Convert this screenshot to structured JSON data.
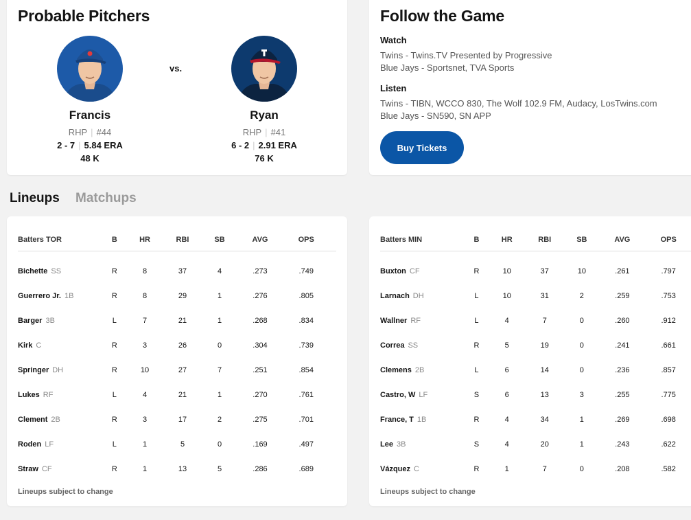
{
  "pitchers": {
    "title": "Probable Pitchers",
    "vs": "vs.",
    "away": {
      "name": "Francis",
      "throws": "RHP",
      "number": "#44",
      "record": "2 - 7",
      "era": "5.84 ERA",
      "strikeouts": "48 K",
      "cap_color": "#1d4f91",
      "jersey_color": "#1a4c8c"
    },
    "home": {
      "name": "Ryan",
      "throws": "RHP",
      "number": "#41",
      "record": "6 - 2",
      "era": "2.91 ERA",
      "strikeouts": "76 K",
      "cap_color": "#0c2340",
      "jersey_color": "#0c2340"
    }
  },
  "follow": {
    "title": "Follow the Game",
    "watch_label": "Watch",
    "watch": [
      "Twins - Twins.TV Presented by Progressive",
      "Blue Jays - Sportsnet, TVA Sports"
    ],
    "listen_label": "Listen",
    "listen": [
      "Twins - TIBN, WCCO 830, The Wolf 102.9 FM, Audacy, LosTwins.com",
      "Blue Jays - SN590, SN APP"
    ],
    "buy_tickets": "Buy Tickets"
  },
  "tabs": {
    "lineups": "Lineups",
    "matchups": "Matchups"
  },
  "columns": [
    "B",
    "HR",
    "RBI",
    "SB",
    "AVG",
    "OPS"
  ],
  "lineups": [
    {
      "header": "Batters TOR",
      "note": "Lineups subject to change",
      "rows": [
        {
          "name": "Bichette",
          "pos": "SS",
          "b": "R",
          "hr": "8",
          "rbi": "37",
          "sb": "4",
          "avg": ".273",
          "ops": ".749"
        },
        {
          "name": "Guerrero Jr.",
          "pos": "1B",
          "b": "R",
          "hr": "8",
          "rbi": "29",
          "sb": "1",
          "avg": ".276",
          "ops": ".805"
        },
        {
          "name": "Barger",
          "pos": "3B",
          "b": "L",
          "hr": "7",
          "rbi": "21",
          "sb": "1",
          "avg": ".268",
          "ops": ".834"
        },
        {
          "name": "Kirk",
          "pos": "C",
          "b": "R",
          "hr": "3",
          "rbi": "26",
          "sb": "0",
          "avg": ".304",
          "ops": ".739"
        },
        {
          "name": "Springer",
          "pos": "DH",
          "b": "R",
          "hr": "10",
          "rbi": "27",
          "sb": "7",
          "avg": ".251",
          "ops": ".854"
        },
        {
          "name": "Lukes",
          "pos": "RF",
          "b": "L",
          "hr": "4",
          "rbi": "21",
          "sb": "1",
          "avg": ".270",
          "ops": ".761"
        },
        {
          "name": "Clement",
          "pos": "2B",
          "b": "R",
          "hr": "3",
          "rbi": "17",
          "sb": "2",
          "avg": ".275",
          "ops": ".701"
        },
        {
          "name": "Roden",
          "pos": "LF",
          "b": "L",
          "hr": "1",
          "rbi": "5",
          "sb": "0",
          "avg": ".169",
          "ops": ".497"
        },
        {
          "name": "Straw",
          "pos": "CF",
          "b": "R",
          "hr": "1",
          "rbi": "13",
          "sb": "5",
          "avg": ".286",
          "ops": ".689"
        }
      ]
    },
    {
      "header": "Batters MIN",
      "note": "Lineups subject to change",
      "rows": [
        {
          "name": "Buxton",
          "pos": "CF",
          "b": "R",
          "hr": "10",
          "rbi": "37",
          "sb": "10",
          "avg": ".261",
          "ops": ".797"
        },
        {
          "name": "Larnach",
          "pos": "DH",
          "b": "L",
          "hr": "10",
          "rbi": "31",
          "sb": "2",
          "avg": ".259",
          "ops": ".753"
        },
        {
          "name": "Wallner",
          "pos": "RF",
          "b": "L",
          "hr": "4",
          "rbi": "7",
          "sb": "0",
          "avg": ".260",
          "ops": ".912"
        },
        {
          "name": "Correa",
          "pos": "SS",
          "b": "R",
          "hr": "5",
          "rbi": "19",
          "sb": "0",
          "avg": ".241",
          "ops": ".661"
        },
        {
          "name": "Clemens",
          "pos": "2B",
          "b": "L",
          "hr": "6",
          "rbi": "14",
          "sb": "0",
          "avg": ".236",
          "ops": ".857"
        },
        {
          "name": "Castro, W",
          "pos": "LF",
          "b": "S",
          "hr": "6",
          "rbi": "13",
          "sb": "3",
          "avg": ".255",
          "ops": ".775"
        },
        {
          "name": "France, T",
          "pos": "1B",
          "b": "R",
          "hr": "4",
          "rbi": "34",
          "sb": "1",
          "avg": ".269",
          "ops": ".698"
        },
        {
          "name": "Lee",
          "pos": "3B",
          "b": "S",
          "hr": "4",
          "rbi": "20",
          "sb": "1",
          "avg": ".243",
          "ops": ".622"
        },
        {
          "name": "Vázquez",
          "pos": "C",
          "b": "R",
          "hr": "1",
          "rbi": "7",
          "sb": "0",
          "avg": ".208",
          "ops": ".582"
        }
      ]
    }
  ]
}
